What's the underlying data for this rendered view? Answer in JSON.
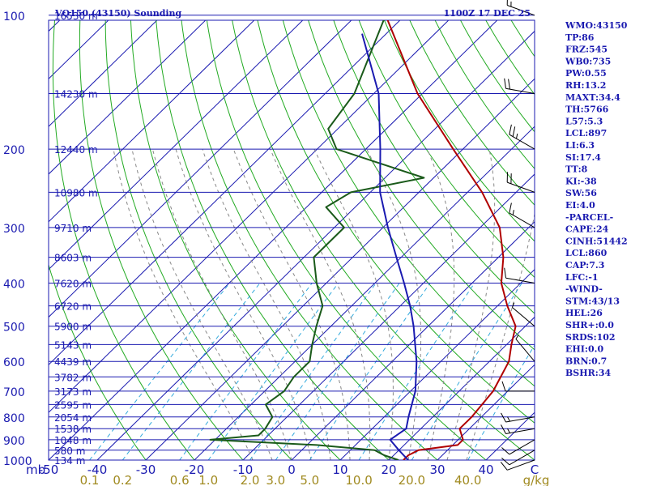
{
  "header": {
    "title": "VQ150 (43150) Sounding",
    "time": "1100Z 17 DEC 25"
  },
  "chart_data": {
    "type": "line",
    "title": "VQ150 (43150) Sounding",
    "xlabel": "",
    "ylabel": "",
    "t_unit_label": "mb",
    "w_unit_label": "g/kg",
    "pressure_ticks": [
      "100",
      "200",
      "300",
      "400",
      "500",
      "600",
      "700",
      "800",
      "900",
      "1000"
    ],
    "temperature_ticks": [
      "-50",
      "-40",
      "-30",
      "-20",
      "-10",
      "0",
      "10",
      "20",
      "30",
      "40"
    ],
    "temperature_axis_end": "C",
    "mixing_ratio_ticks": [
      "0.1",
      "0.2",
      "0.6",
      "1.0",
      "2.0",
      "3.0",
      "5.0",
      "10.0",
      "20.0",
      "40.0"
    ],
    "height_levels": [
      {
        "p": 100,
        "label": "16530 m"
      },
      {
        "p": 150,
        "label": "14230 m"
      },
      {
        "p": 200,
        "label": "12440 m"
      },
      {
        "p": 250,
        "label": "10980 m"
      },
      {
        "p": 300,
        "label": "9710 m"
      },
      {
        "p": 350,
        "label": "8603 m"
      },
      {
        "p": 400,
        "label": "7620 m"
      },
      {
        "p": 450,
        "label": "6720 m"
      },
      {
        "p": 500,
        "label": "5900 m"
      },
      {
        "p": 550,
        "label": "5143 m"
      },
      {
        "p": 600,
        "label": "4439 m"
      },
      {
        "p": 650,
        "label": "3782 m"
      },
      {
        "p": 700,
        "label": "3173 m"
      },
      {
        "p": 750,
        "label": "2595 m"
      },
      {
        "p": 800,
        "label": "2054 m"
      },
      {
        "p": 850,
        "label": "1538 m"
      },
      {
        "p": 900,
        "label": "1048 m"
      },
      {
        "p": 950,
        "label": "580 m"
      },
      {
        "p": 1000,
        "label": "134 m"
      }
    ],
    "series": [
      {
        "name": "",
        "color": "#b00000",
        "points": [
          [
            1000,
            23
          ],
          [
            975,
            23
          ],
          [
            950,
            24
          ],
          [
            925,
            31
          ],
          [
            900,
            31
          ],
          [
            850,
            28
          ],
          [
            800,
            28
          ],
          [
            700,
            27
          ],
          [
            600,
            24
          ],
          [
            550,
            21
          ],
          [
            500,
            18
          ],
          [
            450,
            12
          ],
          [
            400,
            6
          ],
          [
            350,
            1
          ],
          [
            300,
            -6
          ],
          [
            250,
            -17
          ],
          [
            200,
            -32
          ],
          [
            150,
            -51
          ],
          [
            100,
            -74
          ]
        ]
      },
      {
        "name": "",
        "color": "#1a5a1a",
        "points": [
          [
            1000,
            22
          ],
          [
            975,
            18
          ],
          [
            950,
            15
          ],
          [
            925,
            2
          ],
          [
            900,
            -21
          ],
          [
            880,
            -12
          ],
          [
            850,
            -12
          ],
          [
            800,
            -13
          ],
          [
            750,
            -17
          ],
          [
            700,
            -16
          ],
          [
            650,
            -17
          ],
          [
            600,
            -17
          ],
          [
            550,
            -20
          ],
          [
            500,
            -23
          ],
          [
            450,
            -26
          ],
          [
            400,
            -32
          ],
          [
            350,
            -38
          ],
          [
            300,
            -38
          ],
          [
            270,
            -46
          ],
          [
            250,
            -44
          ],
          [
            232,
            -32
          ],
          [
            200,
            -56
          ],
          [
            180,
            -62
          ],
          [
            150,
            -64
          ],
          [
            100,
            -74
          ]
        ]
      },
      {
        "name": "",
        "color": "#1a1ab0",
        "points": [
          [
            1000,
            24
          ],
          [
            950,
            20
          ],
          [
            900,
            16
          ],
          [
            850,
            17
          ],
          [
            800,
            15
          ],
          [
            700,
            11
          ],
          [
            600,
            5
          ],
          [
            500,
            -3
          ],
          [
            450,
            -8
          ],
          [
            400,
            -14
          ],
          [
            350,
            -21
          ],
          [
            300,
            -29
          ],
          [
            250,
            -38
          ],
          [
            200,
            -47
          ],
          [
            150,
            -59
          ],
          [
            110,
            -75
          ]
        ]
      }
    ],
    "x_range_degC": [
      -50,
      50
    ],
    "y_range_hPa": [
      100,
      1000
    ],
    "y_scale": "log-pressure",
    "grid": true,
    "wind_barbs": [
      {
        "p": 1000,
        "dir": 250,
        "spd": 10
      },
      {
        "p": 950,
        "dir": 240,
        "spd": 10
      },
      {
        "p": 900,
        "dir": 240,
        "spd": 10
      },
      {
        "p": 850,
        "dir": 260,
        "spd": 15
      },
      {
        "p": 800,
        "dir": 260,
        "spd": 15
      },
      {
        "p": 700,
        "dir": 270,
        "spd": 10
      },
      {
        "p": 600,
        "dir": 320,
        "spd": 5
      },
      {
        "p": 500,
        "dir": 310,
        "spd": 5
      },
      {
        "p": 400,
        "dir": 280,
        "spd": 10
      },
      {
        "p": 300,
        "dir": 300,
        "spd": 15
      },
      {
        "p": 250,
        "dir": 290,
        "spd": 20
      },
      {
        "p": 200,
        "dir": 300,
        "spd": 25
      },
      {
        "p": 150,
        "dir": 280,
        "spd": 20
      },
      {
        "p": 100,
        "dir": 290,
        "spd": 15
      }
    ]
  },
  "indices": [
    "WMO:43150",
    "TP:86",
    "FRZ:545",
    "WB0:735",
    "PW:0.55",
    "RH:13.2",
    "MAXT:34.4",
    "TH:5766",
    "L57:5.3",
    "LCL:897",
    "LI:6.3",
    "SI:17.4",
    "TT:8",
    "KI:-38",
    "SW:56",
    "EI:4.0",
    "-PARCEL-",
    "CAPE:24",
    "CINH:51442",
    "LCL:860",
    "CAP:7.3",
    "LFC:-1",
    "-WIND-",
    "STM:43/13",
    "HEL:26",
    "SHR+:0.0",
    "SRDS:102",
    "EHI:0.0",
    "BRN:0.7",
    "BSHR:34"
  ]
}
